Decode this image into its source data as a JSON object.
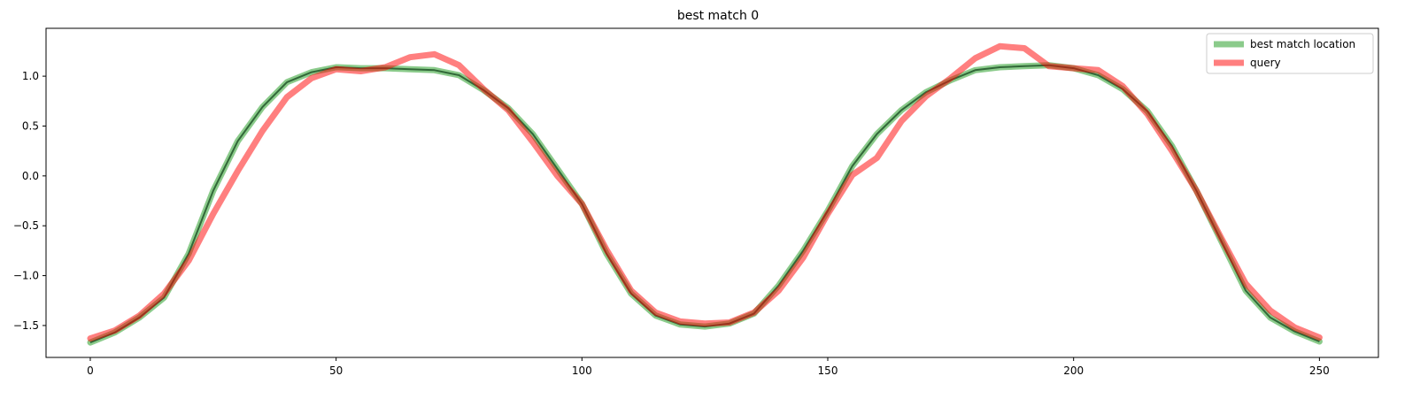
{
  "chart_data": {
    "type": "line",
    "title": "best match 0",
    "xlabel": "",
    "ylabel": "",
    "xlim": [
      -9,
      262
    ],
    "ylim": [
      -1.82,
      1.48
    ],
    "xticks": [
      0,
      50,
      100,
      150,
      200,
      250
    ],
    "yticks": [
      -1.5,
      -1.0,
      -0.5,
      0.0,
      0.5,
      1.0
    ],
    "ytick_labels": [
      "−1.5",
      "−1.0",
      "−0.5",
      "0.0",
      "0.5",
      "1.0"
    ],
    "legend_position": "top-right",
    "grid": false,
    "series": [
      {
        "name": "best match location",
        "color": "#2ca02c",
        "opacity": 0.55,
        "has_dark_core": true,
        "x": [
          0,
          5,
          10,
          15,
          20,
          25,
          30,
          35,
          40,
          45,
          50,
          55,
          60,
          65,
          70,
          75,
          80,
          85,
          90,
          95,
          100,
          105,
          110,
          115,
          120,
          125,
          130,
          135,
          140,
          145,
          150,
          155,
          160,
          165,
          170,
          175,
          180,
          185,
          190,
          195,
          200,
          205,
          210,
          215,
          220,
          225,
          230,
          235,
          240,
          245,
          250
        ],
        "y": [
          -1.67,
          -1.57,
          -1.42,
          -1.22,
          -0.78,
          -0.15,
          0.35,
          0.69,
          0.94,
          1.04,
          1.09,
          1.08,
          1.08,
          1.07,
          1.06,
          1.01,
          0.86,
          0.68,
          0.42,
          0.07,
          -0.28,
          -0.78,
          -1.18,
          -1.4,
          -1.49,
          -1.51,
          -1.48,
          -1.38,
          -1.1,
          -0.75,
          -0.35,
          0.1,
          0.42,
          0.66,
          0.84,
          0.96,
          1.06,
          1.09,
          1.1,
          1.11,
          1.08,
          1.01,
          0.87,
          0.65,
          0.3,
          -0.15,
          -0.65,
          -1.15,
          -1.42,
          -1.56,
          -1.66
        ]
      },
      {
        "name": "query",
        "color": "#ff0000",
        "opacity": 0.5,
        "has_dark_core": false,
        "x": [
          0,
          5,
          10,
          15,
          20,
          25,
          30,
          35,
          40,
          45,
          50,
          55,
          60,
          65,
          70,
          75,
          80,
          85,
          90,
          95,
          100,
          105,
          110,
          115,
          120,
          125,
          130,
          135,
          140,
          145,
          150,
          155,
          160,
          165,
          170,
          175,
          180,
          185,
          190,
          195,
          200,
          205,
          210,
          215,
          220,
          225,
          230,
          235,
          240,
          245,
          250
        ],
        "y": [
          -1.63,
          -1.55,
          -1.4,
          -1.18,
          -0.85,
          -0.38,
          0.05,
          0.45,
          0.79,
          0.98,
          1.07,
          1.05,
          1.09,
          1.19,
          1.22,
          1.11,
          0.87,
          0.66,
          0.34,
          0.0,
          -0.28,
          -0.74,
          -1.15,
          -1.37,
          -1.46,
          -1.48,
          -1.47,
          -1.37,
          -1.15,
          -0.82,
          -0.38,
          0.01,
          0.18,
          0.55,
          0.8,
          0.98,
          1.18,
          1.3,
          1.28,
          1.1,
          1.08,
          1.06,
          0.9,
          0.62,
          0.25,
          -0.15,
          -0.62,
          -1.08,
          -1.35,
          -1.52,
          -1.62
        ]
      }
    ]
  }
}
